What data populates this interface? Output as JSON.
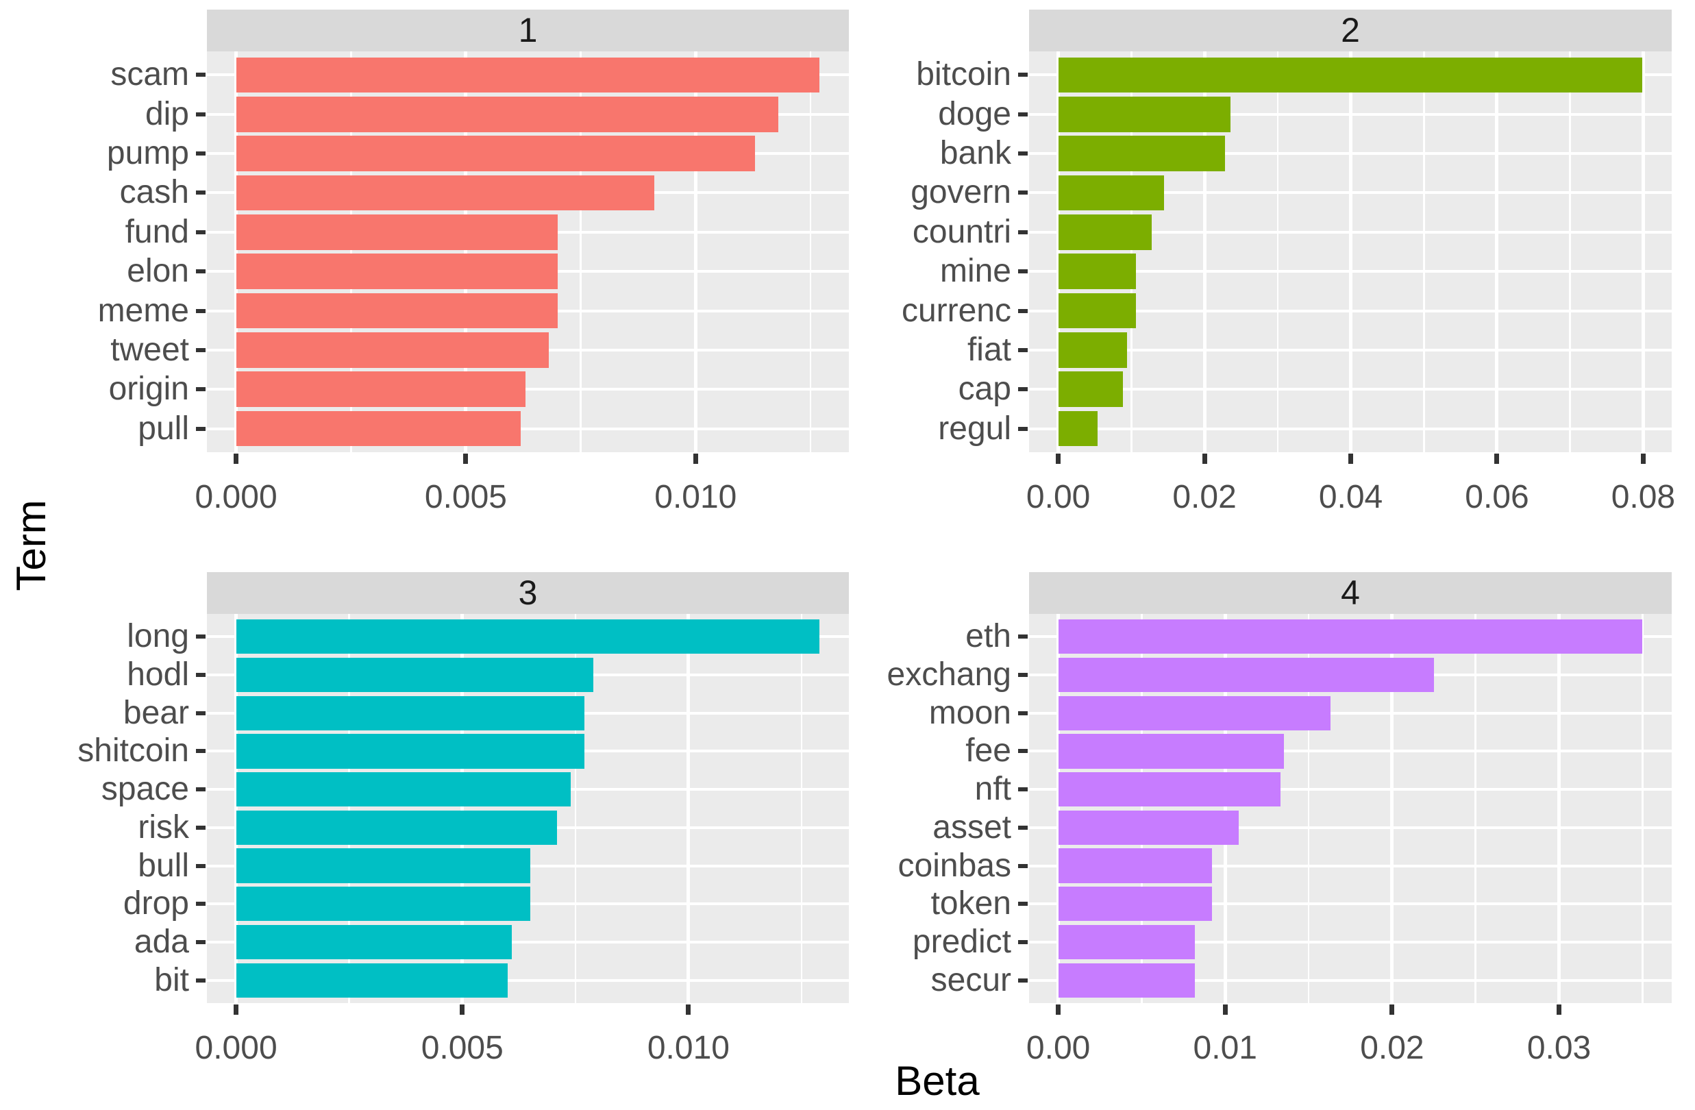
{
  "chart_data": {
    "type": "bar",
    "orientation": "horizontal",
    "title": "",
    "xlabel": "Beta",
    "ylabel": "Term",
    "layout": "2x2 facet grid with per-facet free x scales, gray facet strips, white gridlines on gray panels, no legend",
    "facets": [
      {
        "label": "1",
        "color": "#F8766D",
        "terms": [
          "scam",
          "dip",
          "pump",
          "cash",
          "fund",
          "elon",
          "meme",
          "tweet",
          "origin",
          "pull"
        ],
        "values": [
          0.0127,
          0.0118,
          0.0113,
          0.0091,
          0.007,
          0.007,
          0.007,
          0.0068,
          0.0063,
          0.0062
        ],
        "x_ticks": [
          0,
          0.005,
          0.01
        ],
        "x_tick_labels": [
          "0.000",
          "0.005",
          "0.010"
        ]
      },
      {
        "label": "2",
        "color": "#7CAE00",
        "terms": [
          "bitcoin",
          "doge",
          "bank",
          "govern",
          "countri",
          "mine",
          "currenc",
          "fiat",
          "cap",
          "regul"
        ],
        "values": [
          0.0799,
          0.0236,
          0.0228,
          0.0145,
          0.0128,
          0.0106,
          0.0106,
          0.0094,
          0.0088,
          0.0054
        ],
        "x_ticks": [
          0,
          0.02,
          0.04,
          0.06,
          0.08
        ],
        "x_tick_labels": [
          "0.00",
          "0.02",
          "0.04",
          "0.06",
          "0.08"
        ]
      },
      {
        "label": "3",
        "color": "#00BFC4",
        "terms": [
          "long",
          "hodl",
          "bear",
          "shitcoin",
          "space",
          "risk",
          "bull",
          "drop",
          "ada",
          "bit"
        ],
        "values": [
          0.0129,
          0.0079,
          0.0077,
          0.0077,
          0.0074,
          0.0071,
          0.0065,
          0.0065,
          0.0061,
          0.006
        ],
        "x_ticks": [
          0,
          0.005,
          0.01
        ],
        "x_tick_labels": [
          "0.000",
          "0.005",
          "0.010"
        ]
      },
      {
        "label": "4",
        "color": "#C77CFF",
        "terms": [
          "eth",
          "exchang",
          "moon",
          "fee",
          "nft",
          "asset",
          "coinbas",
          "token",
          "predict",
          "secur"
        ],
        "values": [
          0.035,
          0.0225,
          0.0163,
          0.0135,
          0.0133,
          0.0108,
          0.0092,
          0.0092,
          0.0082,
          0.0082
        ],
        "x_ticks": [
          0,
          0.01,
          0.02,
          0.03
        ],
        "x_tick_labels": [
          "0.00",
          "0.01",
          "0.02",
          "0.03"
        ]
      }
    ],
    "theme": {
      "panel_bg": "#EBEBEB",
      "strip_bg": "#D9D9D9",
      "grid_color": "#FFFFFF",
      "axis_text_color": "#4D4D4D",
      "strip_text_color": "#1A1A1A",
      "axis_title_color": "#000000",
      "tick_mark_color": "#333333",
      "bar_width_fraction": 0.9,
      "x_expansion_mult": 0.05
    }
  }
}
